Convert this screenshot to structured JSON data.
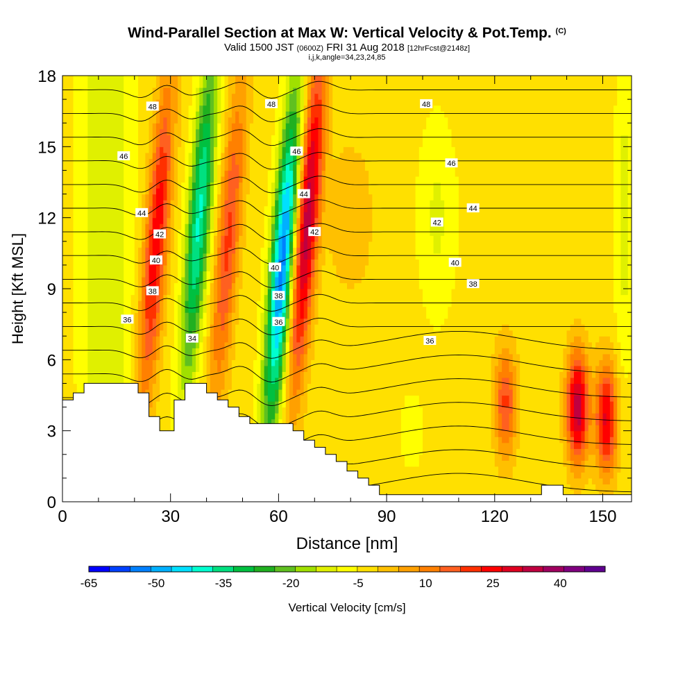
{
  "header": {
    "title": "Wind-Parallel Section at Max W: Vertical Velocity & Pot.Temp.",
    "copyright": "(C)",
    "valid_prefix": "Valid 1500 JST",
    "valid_utc": "(0600Z)",
    "valid_date": "FRI 31 Aug 2018",
    "forecast": "[12hrFcst@2148z]",
    "grid_info": "i,j,k,angle=34,23,24,85"
  },
  "chart_data": {
    "type": "heatmap",
    "title": "Wind-Parallel Section at Max W: Vertical Velocity & Pot.Temp.",
    "xlabel": "Distance [nm]",
    "ylabel": "Height [Kft MSL]",
    "colorbar_label": "Vertical Velocity [cm/s]",
    "xlim": [
      0,
      158
    ],
    "ylim": [
      0,
      18
    ],
    "x_ticks": [
      0,
      30,
      60,
      90,
      120,
      150
    ],
    "y_ticks": [
      0,
      3,
      6,
      9,
      12,
      15,
      18
    ],
    "colorbar": {
      "min": -65,
      "max": 45,
      "step": 5,
      "tick_labels": [
        "-65",
        "-50",
        "-35",
        "-20",
        "-5",
        "10",
        "25",
        "40"
      ],
      "colors": [
        "#0000ff",
        "#0040ff",
        "#0080ff",
        "#00b0ff",
        "#00e0ff",
        "#00ffd0",
        "#00e080",
        "#00c040",
        "#20b020",
        "#60c020",
        "#a0e000",
        "#e0f000",
        "#ffff00",
        "#ffe000",
        "#ffc000",
        "#ffa000",
        "#ff8000",
        "#ff6020",
        "#ff3000",
        "#ff0000",
        "#e00020",
        "#c00040",
        "#a00060",
        "#800080",
        "#600090"
      ]
    },
    "features": [
      {
        "type": "updraft",
        "x_center": 26,
        "y_center": 11,
        "peak_cm_s": 32
      },
      {
        "type": "downdraft",
        "x_center": 38,
        "y_center": 12,
        "peak_cm_s": -38
      },
      {
        "type": "updraft",
        "x_center": 46,
        "y_center": 11,
        "peak_cm_s": 24
      },
      {
        "type": "downdraft",
        "x_center": 61,
        "y_center": 10,
        "peak_cm_s": -55
      },
      {
        "type": "updraft",
        "x_center": 68,
        "y_center": 12,
        "peak_cm_s": 42
      },
      {
        "type": "updraft",
        "x_center": 123,
        "y_center": 4.2,
        "peak_cm_s": 24
      },
      {
        "type": "updraft",
        "x_center": 143,
        "y_center": 4,
        "peak_cm_s": 42
      },
      {
        "type": "updraft",
        "x_center": 151,
        "y_center": 3.5,
        "peak_cm_s": 34
      }
    ],
    "theta_contours": {
      "units": "Pot.Temp.",
      "levels": [
        34,
        36,
        38,
        40,
        42,
        44,
        46,
        48
      ],
      "labels": [
        {
          "text": "48",
          "x": 25,
          "y": 16.7
        },
        {
          "text": "48",
          "x": 58,
          "y": 16.8
        },
        {
          "text": "48",
          "x": 101,
          "y": 16.8
        },
        {
          "text": "46",
          "x": 17,
          "y": 14.6
        },
        {
          "text": "46",
          "x": 65,
          "y": 14.8
        },
        {
          "text": "46",
          "x": 108,
          "y": 14.3
        },
        {
          "text": "44",
          "x": 22,
          "y": 12.2
        },
        {
          "text": "44",
          "x": 67,
          "y": 13.0
        },
        {
          "text": "44",
          "x": 114,
          "y": 12.4
        },
        {
          "text": "42",
          "x": 27,
          "y": 11.3
        },
        {
          "text": "42",
          "x": 70,
          "y": 11.4
        },
        {
          "text": "42",
          "x": 104,
          "y": 11.8
        },
        {
          "text": "40",
          "x": 26,
          "y": 10.2
        },
        {
          "text": "40",
          "x": 59,
          "y": 9.9
        },
        {
          "text": "40",
          "x": 109,
          "y": 10.1
        },
        {
          "text": "38",
          "x": 25,
          "y": 8.9
        },
        {
          "text": "38",
          "x": 60,
          "y": 8.7
        },
        {
          "text": "38",
          "x": 114,
          "y": 9.2
        },
        {
          "text": "36",
          "x": 18,
          "y": 7.7
        },
        {
          "text": "36",
          "x": 60,
          "y": 7.6
        },
        {
          "text": "36",
          "x": 102,
          "y": 6.8
        },
        {
          "text": "34",
          "x": 36,
          "y": 6.9
        }
      ]
    },
    "terrain": [
      {
        "x": 0,
        "h": 4.3
      },
      {
        "x": 3,
        "h": 4.6
      },
      {
        "x": 6,
        "h": 5.0
      },
      {
        "x": 21,
        "h": 4.6
      },
      {
        "x": 24,
        "h": 3.6
      },
      {
        "x": 27,
        "h": 3.0
      },
      {
        "x": 31,
        "h": 4.3
      },
      {
        "x": 34,
        "h": 5.0
      },
      {
        "x": 40,
        "h": 4.6
      },
      {
        "x": 43,
        "h": 4.3
      },
      {
        "x": 46,
        "h": 4.0
      },
      {
        "x": 49,
        "h": 3.6
      },
      {
        "x": 52,
        "h": 3.3
      },
      {
        "x": 64,
        "h": 3.0
      },
      {
        "x": 67,
        "h": 2.6
      },
      {
        "x": 70,
        "h": 2.3
      },
      {
        "x": 73,
        "h": 2.0
      },
      {
        "x": 76,
        "h": 1.7
      },
      {
        "x": 79,
        "h": 1.3
      },
      {
        "x": 82,
        "h": 1.0
      },
      {
        "x": 85,
        "h": 0.7
      },
      {
        "x": 88,
        "h": 0.3
      },
      {
        "x": 133,
        "h": 0.7
      },
      {
        "x": 139,
        "h": 0.3
      },
      {
        "x": 158,
        "h": 0.3
      }
    ]
  }
}
